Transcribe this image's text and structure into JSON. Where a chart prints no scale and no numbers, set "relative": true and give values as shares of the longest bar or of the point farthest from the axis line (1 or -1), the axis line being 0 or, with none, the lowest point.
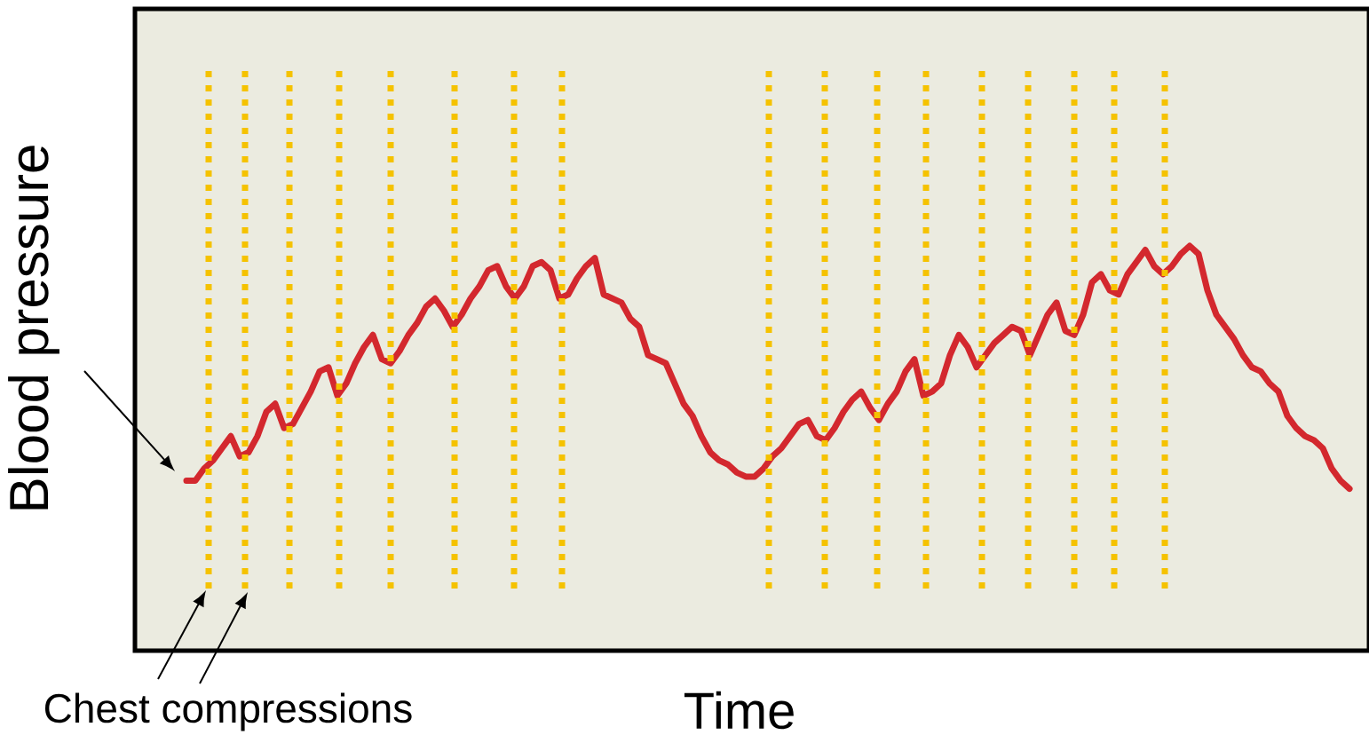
{
  "chart_data": {
    "type": "line",
    "relative": true,
    "xlabel": "Time",
    "ylabel": "Blood pressure",
    "annotations": [
      "Chest compressions"
    ],
    "categories": [
      null,
      null,
      null,
      null,
      null,
      null,
      null,
      null,
      null,
      null,
      null,
      null,
      null,
      null,
      null,
      null,
      null,
      null,
      null,
      null,
      null,
      null,
      null,
      null,
      null,
      null,
      null,
      null,
      null,
      null,
      null,
      null,
      null,
      null,
      null,
      null,
      null,
      null,
      null,
      null,
      null,
      null,
      null,
      null,
      null,
      null,
      null,
      null,
      null,
      null,
      null,
      null,
      null,
      null,
      null,
      null,
      null,
      null,
      null,
      null,
      null,
      null,
      null,
      null,
      null,
      null,
      null,
      null,
      null,
      null,
      null,
      null,
      null,
      null,
      null,
      null,
      null,
      null,
      null,
      null,
      null,
      null,
      null,
      null,
      null,
      null,
      null,
      null,
      null,
      null,
      null,
      null,
      null,
      null,
      null,
      null,
      null,
      null,
      null,
      null,
      null,
      null,
      null,
      null,
      null,
      null,
      null,
      null,
      null,
      null,
      null,
      null,
      null,
      null,
      null,
      null,
      null,
      null,
      null,
      null,
      null,
      null,
      null,
      null,
      null,
      null,
      null,
      null,
      null,
      null,
      null,
      null
    ],
    "color": "#d3282e",
    "line_style": "solid",
    "values": [
      0.42,
      0.42,
      0.45,
      0.47,
      0.5,
      0.53,
      0.48,
      0.49,
      0.53,
      0.59,
      0.61,
      0.55,
      0.56,
      0.6,
      0.64,
      0.69,
      0.7,
      0.63,
      0.66,
      0.71,
      0.75,
      0.78,
      0.72,
      0.71,
      0.74,
      0.78,
      0.81,
      0.85,
      0.87,
      0.84,
      0.8,
      0.83,
      0.87,
      0.9,
      0.94,
      0.95,
      0.9,
      0.87,
      0.9,
      0.95,
      0.96,
      0.94,
      0.87,
      0.88,
      0.92,
      0.95,
      0.97,
      0.88,
      0.87,
      0.86,
      0.82,
      0.8,
      0.73,
      0.72,
      0.71,
      0.66,
      0.61,
      0.58,
      0.53,
      0.49,
      0.47,
      0.46,
      0.44,
      0.43,
      0.43,
      0.45,
      0.48,
      0.5,
      0.53,
      0.56,
      0.57,
      0.53,
      0.52,
      0.55,
      0.59,
      0.62,
      0.64,
      0.6,
      0.57,
      0.61,
      0.64,
      0.69,
      0.72,
      0.63,
      0.64,
      0.66,
      0.73,
      0.78,
      0.75,
      0.7,
      0.73,
      0.76,
      0.78,
      0.8,
      0.79,
      0.73,
      0.78,
      0.83,
      0.86,
      0.79,
      0.78,
      0.83,
      0.91,
      0.93,
      0.89,
      0.88,
      0.93,
      0.96,
      0.99,
      0.95,
      0.93,
      0.95,
      0.98,
      1,
      0.98,
      0.89,
      0.83,
      0.8,
      0.77,
      0.73,
      0.7,
      0.69,
      0.66,
      0.64,
      0.58,
      0.55,
      0.53,
      0.52,
      0.5,
      0.45,
      0.42,
      0.4
    ]
  }
}
